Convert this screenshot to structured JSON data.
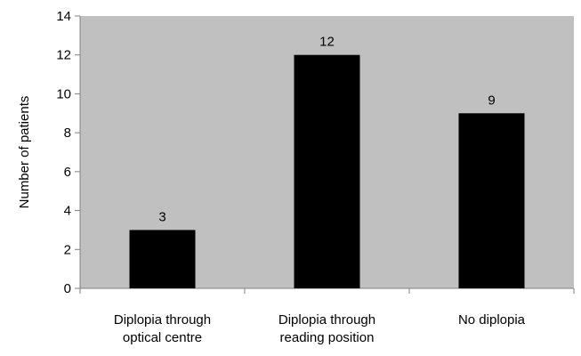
{
  "chart_data": {
    "type": "bar",
    "categories": [
      [
        "Diplopia through",
        "optical centre"
      ],
      [
        "Diplopia through",
        "reading position"
      ],
      [
        "No diplopia"
      ]
    ],
    "values": [
      3,
      12,
      9
    ],
    "data_labels": [
      "3",
      "12",
      "9"
    ],
    "ylabel": "Number of patients",
    "xlabel": "",
    "title": "",
    "ylim": [
      0,
      14
    ],
    "y_ticks": [
      0,
      2,
      4,
      6,
      8,
      10,
      12,
      14
    ],
    "y_tick_labels": [
      "0",
      "2",
      "4",
      "6",
      "8",
      "10",
      "12",
      "14"
    ],
    "grid": false,
    "legend": "none",
    "colors": {
      "plot_background": "#c0c0c0",
      "bar_fill": "#000000",
      "axis": "#808080",
      "text": "#000000"
    }
  }
}
